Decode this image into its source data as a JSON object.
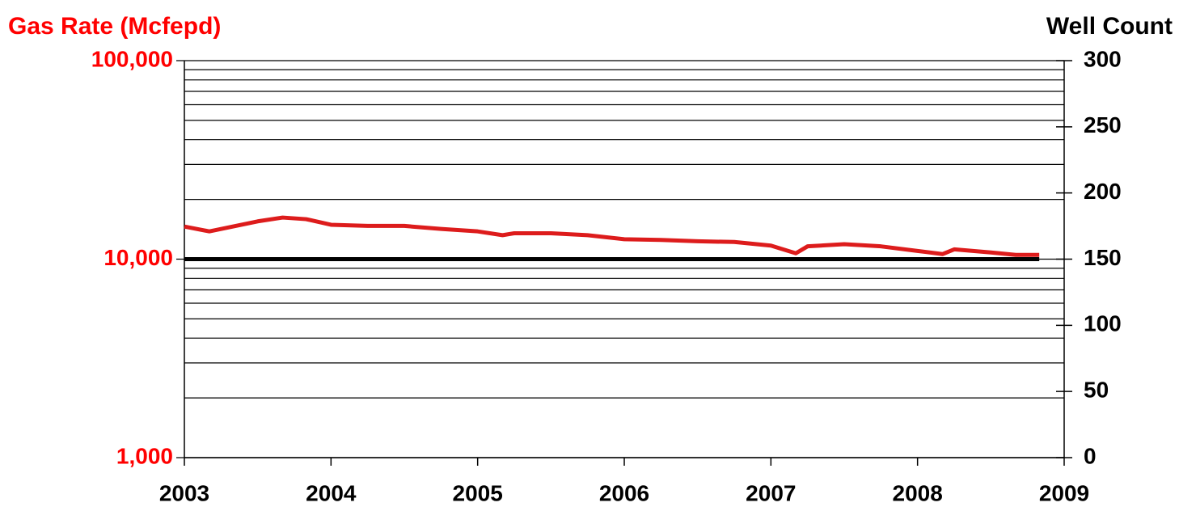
{
  "chart_data": {
    "type": "line",
    "y_axis_label": "Gas Rate (Mcfepd)",
    "y2_axis_label": "Well Count",
    "x": [
      2003.0,
      2003.17,
      2003.33,
      2003.5,
      2003.67,
      2003.83,
      2004.0,
      2004.25,
      2004.5,
      2004.75,
      2005.0,
      2005.17,
      2005.25,
      2005.5,
      2005.75,
      2006.0,
      2006.25,
      2006.5,
      2006.75,
      2007.0,
      2007.17,
      2007.25,
      2007.5,
      2007.75,
      2008.0,
      2008.17,
      2008.25,
      2008.5,
      2008.67,
      2008.83
    ],
    "xlim": [
      2003,
      2009
    ],
    "xticks": [
      2003,
      2004,
      2005,
      2006,
      2007,
      2008,
      2009
    ],
    "ylim": [
      1000,
      100000
    ],
    "ylog": true,
    "yticks": [
      {
        "value": 1000,
        "label": "1,000"
      },
      {
        "value": 10000,
        "label": "10,000"
      },
      {
        "value": 100000,
        "label": "100,000"
      }
    ],
    "y_minor_ticks": [
      2000,
      3000,
      4000,
      5000,
      6000,
      7000,
      8000,
      9000,
      20000,
      30000,
      40000,
      50000,
      60000,
      70000,
      80000,
      90000
    ],
    "y2lim": [
      0,
      300
    ],
    "y2ticks": [
      0,
      50,
      100,
      150,
      200,
      250,
      300
    ],
    "grid": true,
    "y_label_color": "#ff0000",
    "series": [
      {
        "color": "#dd1c1c",
        "values": [
          14600,
          13800,
          14600,
          15500,
          16200,
          15900,
          14900,
          14700,
          14700,
          14200,
          13800,
          13200,
          13500,
          13500,
          13200,
          12600,
          12500,
          12300,
          12200,
          11700,
          10700,
          11600,
          11900,
          11600,
          11000,
          10600,
          11200,
          10800,
          10500,
          10500
        ]
      },
      {
        "color": "#000000",
        "axis": "y2",
        "values": [
          150,
          150,
          150,
          150,
          150,
          150,
          150,
          150,
          150,
          150,
          150,
          150,
          150,
          150,
          150,
          150,
          150,
          150,
          150,
          150,
          150,
          150,
          150,
          150,
          150,
          150,
          150,
          150,
          150,
          150
        ]
      }
    ]
  }
}
